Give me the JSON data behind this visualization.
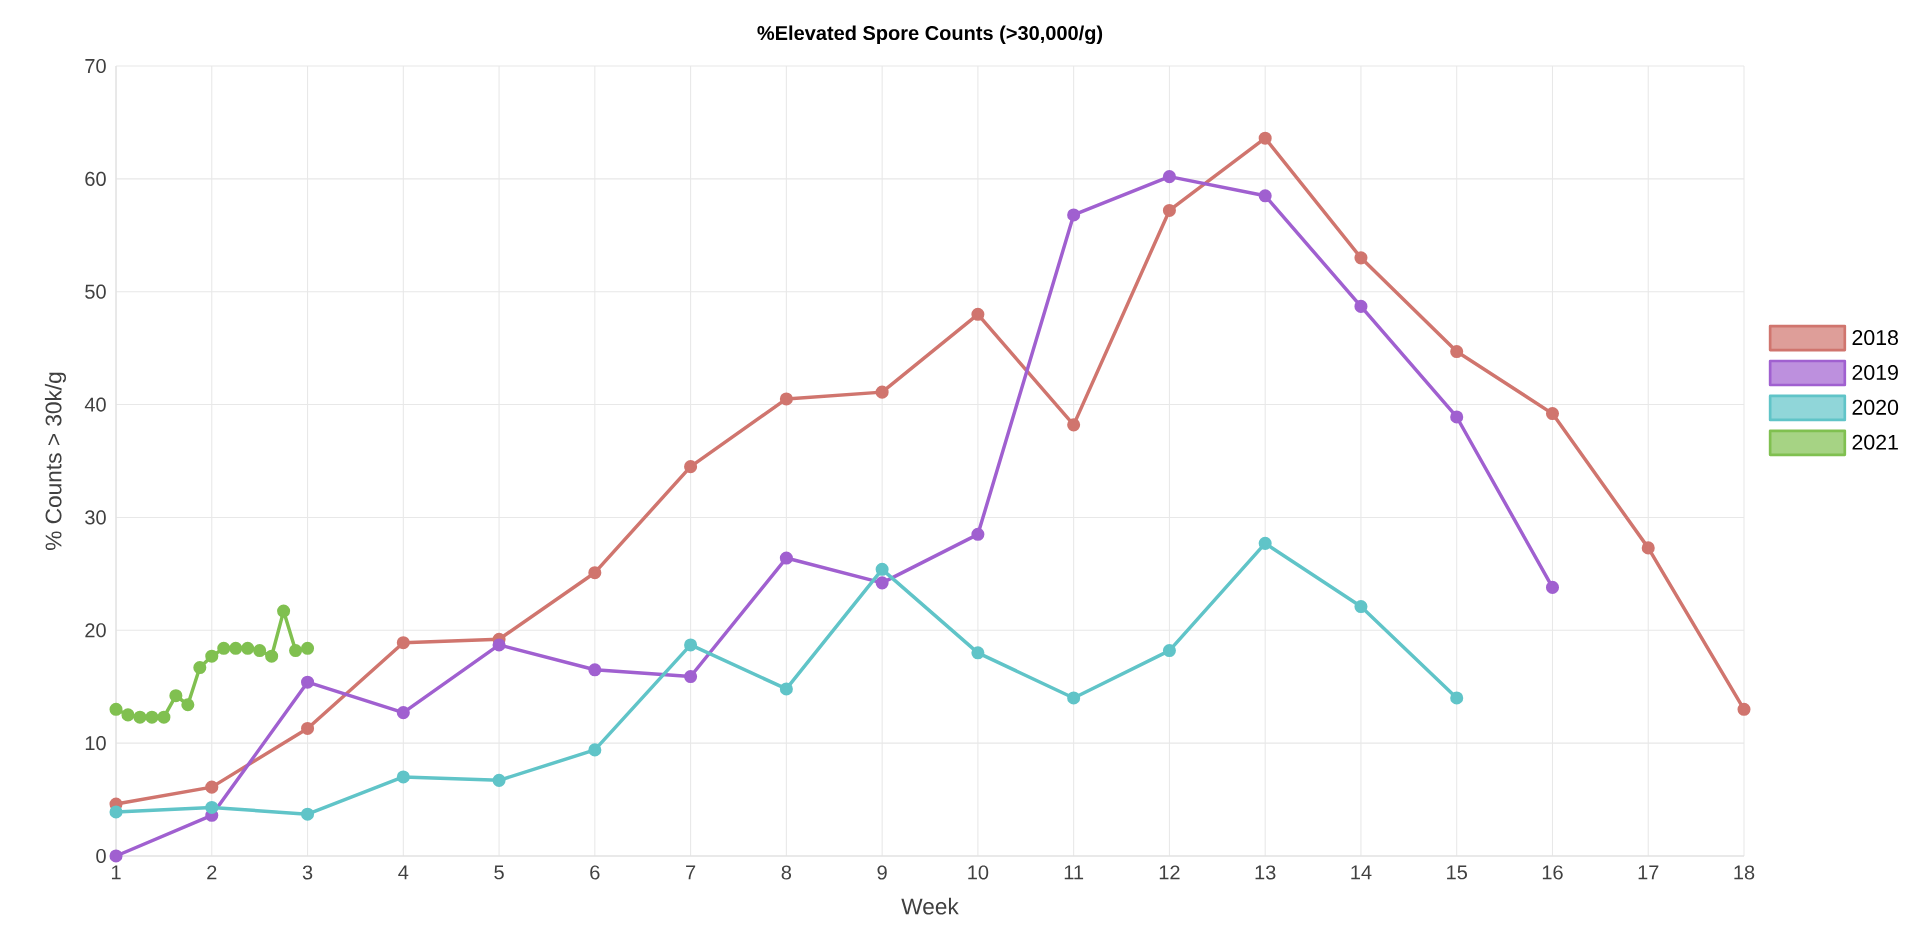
{
  "chart_data": {
    "type": "line",
    "title": "%Elevated Spore Counts (>30,000/g)",
    "xlabel": "Week",
    "ylabel": "% Counts > 30k/g",
    "xlim": [
      1,
      18
    ],
    "xticks": [
      1,
      2,
      3,
      4,
      5,
      6,
      7,
      8,
      9,
      10,
      11,
      12,
      13,
      14,
      15,
      16,
      17,
      18
    ],
    "ylim": [
      0,
      70
    ],
    "yticks": [
      0,
      10,
      20,
      30,
      40,
      50,
      60,
      70
    ],
    "grid": true,
    "legend": "right",
    "marker": "circle",
    "line_style": "solid",
    "series": [
      {
        "name": "2018",
        "color": "#d0756e",
        "x": [
          1,
          2,
          3,
          4,
          5,
          6,
          7,
          8,
          9,
          10,
          11,
          12,
          13,
          14,
          15,
          16,
          17,
          18
        ],
        "values": [
          4.6,
          6.1,
          11.3,
          18.9,
          19.2,
          25.1,
          34.5,
          40.5,
          41.1,
          48.0,
          38.2,
          57.2,
          63.6,
          53.0,
          44.7,
          39.2,
          27.3,
          13.0
        ]
      },
      {
        "name": "2019",
        "color": "#a060d0",
        "x": [
          1,
          2,
          3,
          4,
          5,
          6,
          7,
          8,
          9,
          10,
          11,
          12,
          13,
          14,
          15,
          16
        ],
        "values": [
          0,
          3.6,
          15.4,
          12.7,
          18.7,
          16.5,
          15.9,
          26.4,
          24.2,
          28.5,
          56.8,
          60.2,
          58.5,
          48.7,
          38.9,
          23.8
        ]
      },
      {
        "name": "2020",
        "color": "#60c4c8",
        "x": [
          1,
          2,
          3,
          4,
          5,
          6,
          7,
          8,
          9,
          10,
          11,
          12,
          13,
          14,
          15
        ],
        "values": [
          3.9,
          4.3,
          3.7,
          7.0,
          6.7,
          9.4,
          18.7,
          14.8,
          25.4,
          18.0,
          14.0,
          18.2,
          27.7,
          22.1,
          14.0
        ]
      },
      {
        "name": "2021",
        "color": "#80c050",
        "x": [
          1.0,
          1.125,
          1.25,
          1.375,
          1.5,
          1.625,
          1.75,
          1.875,
          2.0,
          2.125,
          2.25,
          2.375,
          2.5,
          2.625,
          2.75,
          2.875,
          3.0
        ],
        "values": [
          13.0,
          12.5,
          12.3,
          12.3,
          12.3,
          14.2,
          13.4,
          16.7,
          17.7,
          18.4,
          18.4,
          18.4,
          18.2,
          17.7,
          21.7,
          18.2,
          18.4
        ]
      }
    ]
  }
}
